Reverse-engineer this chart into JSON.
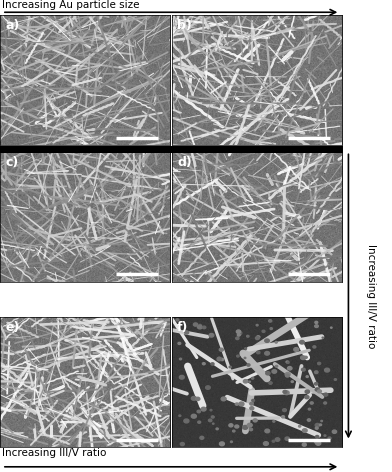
{
  "figure_width": 3.92,
  "figure_height": 4.72,
  "dpi": 100,
  "top_label": "Increasing Au particle size",
  "bottom_label": "Increasing III/V ratio",
  "right_label": "Increasing III/V ratio",
  "panel_labels": [
    "a)",
    "b)",
    "c)",
    "d)",
    "e)",
    "f)"
  ],
  "bg_color_dense": "#808080",
  "bg_color_sparse": "#404040",
  "label_fontsize": 7.5,
  "panel_label_fontsize": 9,
  "scalebar_color": "#ffffff",
  "wire_color_min": 0.5,
  "wire_color_max": 1.0,
  "n_wires_dense": 350,
  "n_wires_sparse": 18,
  "n_dots_sparse": 120
}
